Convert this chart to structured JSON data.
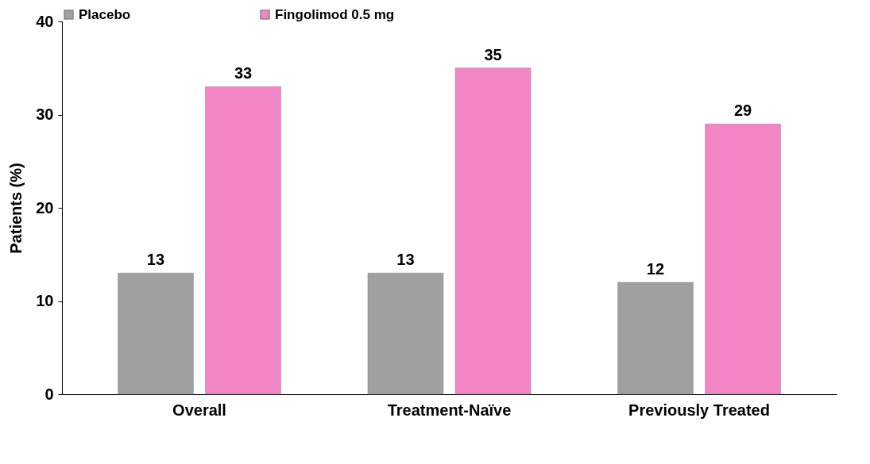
{
  "chart_data": {
    "type": "bar",
    "ylabel": "Patients (%)",
    "categories": [
      "Overall",
      "Treatment-Naïve",
      "Previously Treated"
    ],
    "series": [
      {
        "name": "Placebo",
        "color": "#a0a0a0",
        "values": [
          13,
          13,
          12
        ]
      },
      {
        "name": "Fingolimod 0.5 mg",
        "color": "#f286c4",
        "values": [
          33,
          35,
          29
        ]
      }
    ],
    "ylim": [
      0,
      40
    ],
    "yticks": [
      0,
      10,
      20,
      30,
      40
    ],
    "grid": false,
    "legend": "top",
    "data_labels": true
  }
}
